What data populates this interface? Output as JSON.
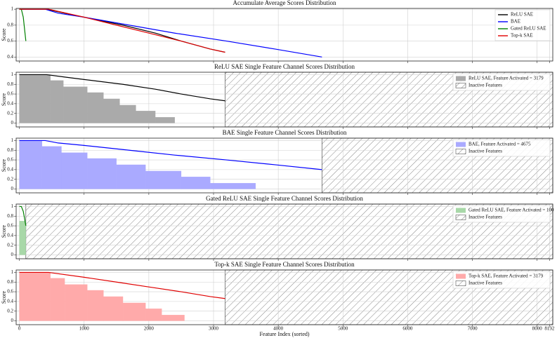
{
  "chart_data": [
    {
      "type": "line",
      "title": "Accumulate Average Scores Distribution",
      "ylabel": "Score",
      "xlim": [
        -50,
        8242
      ],
      "ylim": [
        0.35,
        1.01
      ],
      "xticks": [
        0,
        1000,
        2000,
        3000,
        4000,
        5000,
        6000,
        7000,
        8000,
        8192
      ],
      "yticks": [
        0.4,
        0.6,
        0.8,
        1.0
      ],
      "grid": true,
      "legend": "upper right",
      "series": [
        {
          "type": "line",
          "name": "ReLU SAE",
          "color": "#000000",
          "x": [
            0,
            420,
            700,
            1000,
            1600,
            2100,
            2500,
            2950,
            3179
          ],
          "values": [
            1.0,
            1.0,
            0.95,
            0.9,
            0.8,
            0.7,
            0.6,
            0.5,
            0.46
          ]
        },
        {
          "type": "line",
          "name": "BAE",
          "color": "#0000ff",
          "x": [
            0,
            400,
            600,
            1000,
            1700,
            2400,
            3200,
            3950,
            4675
          ],
          "values": [
            1.0,
            1.0,
            0.95,
            0.9,
            0.8,
            0.7,
            0.6,
            0.5,
            0.4
          ]
        },
        {
          "type": "line",
          "name": "Gated ReLU SAE",
          "color": "#008000",
          "x": [
            0,
            30,
            60,
            100
          ],
          "values": [
            1.0,
            1.0,
            0.9,
            0.6
          ]
        },
        {
          "type": "line",
          "name": "Top-k SAE",
          "color": "#e00000",
          "x": [
            0,
            450,
            1000,
            1500,
            2000,
            2500,
            2950,
            3179
          ],
          "values": [
            1.0,
            1.0,
            0.9,
            0.8,
            0.7,
            0.6,
            0.5,
            0.46
          ]
        }
      ]
    },
    {
      "type": "line",
      "title": "ReLU SAE Single Feature Channel Scores Distribution",
      "ylabel": "Score",
      "xlim": [
        -50,
        8242
      ],
      "ylim": [
        -0.08,
        1.05
      ],
      "xticks": [
        0,
        1000,
        2000,
        3000,
        4000,
        5000,
        6000,
        7000,
        8000,
        8192
      ],
      "yticks": [
        0.0,
        0.2,
        0.4,
        0.6,
        0.8,
        1.0
      ],
      "grid": true,
      "legend": "upper right",
      "series": [
        {
          "type": "step",
          "name": "ReLU SAE, Feature Activated = 3179",
          "color": "#aaaaaa",
          "bins": [
            0,
            480,
            680,
            1050,
            1300,
            1550,
            1800,
            2100,
            2400
          ],
          "values": [
            1.0,
            0.88,
            0.75,
            0.63,
            0.5,
            0.37,
            0.25,
            0.12
          ]
        },
        {
          "type": "line",
          "color": "#000000",
          "x": [
            0,
            420,
            700,
            1000,
            1600,
            2100,
            2500,
            2950,
            3179
          ],
          "values": [
            1.0,
            1.0,
            0.95,
            0.9,
            0.8,
            0.7,
            0.6,
            0.5,
            0.46
          ]
        }
      ],
      "inactive": {
        "name": "Inactive Features",
        "start": 3179
      }
    },
    {
      "type": "line",
      "title": "BAE Single Feature Channel Scores Distribution",
      "ylabel": "Score",
      "xlim": [
        -50,
        8242
      ],
      "ylim": [
        -0.08,
        1.05
      ],
      "xticks": [
        0,
        1000,
        2000,
        3000,
        4000,
        5000,
        6000,
        7000,
        8000,
        8192
      ],
      "yticks": [
        0.0,
        0.2,
        0.4,
        0.6,
        0.8,
        1.0
      ],
      "grid": true,
      "legend": "upper right",
      "series": [
        {
          "type": "step",
          "name": "BAE, Feature Activated = 4675",
          "color": "#aaaaff",
          "bins": [
            0,
            350,
            650,
            1050,
            1500,
            1950,
            2500,
            2950,
            3650
          ],
          "values": [
            1.0,
            0.88,
            0.75,
            0.63,
            0.5,
            0.37,
            0.25,
            0.12
          ]
        },
        {
          "type": "line",
          "color": "#0000ff",
          "x": [
            0,
            400,
            600,
            1000,
            1700,
            2400,
            3200,
            3950,
            4675
          ],
          "values": [
            1.0,
            1.0,
            0.95,
            0.9,
            0.8,
            0.7,
            0.6,
            0.5,
            0.4
          ]
        }
      ],
      "inactive": {
        "name": "Inactive Features",
        "start": 4675
      }
    },
    {
      "type": "line",
      "title": "Gated ReLU SAE Single Feature Channel Scores Distribution",
      "ylabel": "Score",
      "xlim": [
        -50,
        8242
      ],
      "ylim": [
        -0.08,
        1.05
      ],
      "xticks": [
        0,
        1000,
        2000,
        3000,
        4000,
        5000,
        6000,
        7000,
        8000,
        8192
      ],
      "yticks": [
        0.0,
        0.2,
        0.4,
        0.6,
        0.8,
        1.0
      ],
      "grid": true,
      "legend": "upper right",
      "series": [
        {
          "type": "step",
          "name": "Gated ReLU SAE, Feature Activated = 100",
          "color": "#a8d8a8",
          "bins": [
            0,
            100
          ],
          "values": [
            0.7
          ]
        },
        {
          "type": "line",
          "color": "#008000",
          "x": [
            0,
            30,
            60,
            100
          ],
          "values": [
            1.0,
            1.0,
            0.9,
            0.6
          ]
        }
      ],
      "inactive": {
        "name": "Inactive Features",
        "start": 100
      }
    },
    {
      "type": "line",
      "title": "Top-k SAE Single Feature Channel Scores Distribution",
      "ylabel": "Score",
      "xlabel": "Feature Index (sorted)",
      "xlim": [
        -50,
        8242
      ],
      "ylim": [
        -0.08,
        1.05
      ],
      "xticks": [
        0,
        1000,
        2000,
        3000,
        4000,
        5000,
        6000,
        7000,
        8000,
        8192
      ],
      "yticks": [
        0.0,
        0.2,
        0.4,
        0.6,
        0.8,
        1.0
      ],
      "grid": true,
      "legend": "upper right",
      "series": [
        {
          "type": "step",
          "name": "Top-k SAE, Feature Activated = 3179",
          "color": "#ffaaaa",
          "bins": [
            0,
            480,
            700,
            1050,
            1300,
            1600,
            1950,
            2200,
            2550
          ],
          "values": [
            1.0,
            0.88,
            0.75,
            0.63,
            0.5,
            0.37,
            0.25,
            0.12
          ]
        },
        {
          "type": "line",
          "color": "#e00000",
          "x": [
            0,
            450,
            1000,
            1500,
            2000,
            2500,
            2950,
            3179
          ],
          "values": [
            1.0,
            1.0,
            0.9,
            0.8,
            0.7,
            0.6,
            0.5,
            0.46
          ]
        }
      ],
      "inactive": {
        "name": "Inactive Features",
        "start": 3179
      }
    }
  ]
}
